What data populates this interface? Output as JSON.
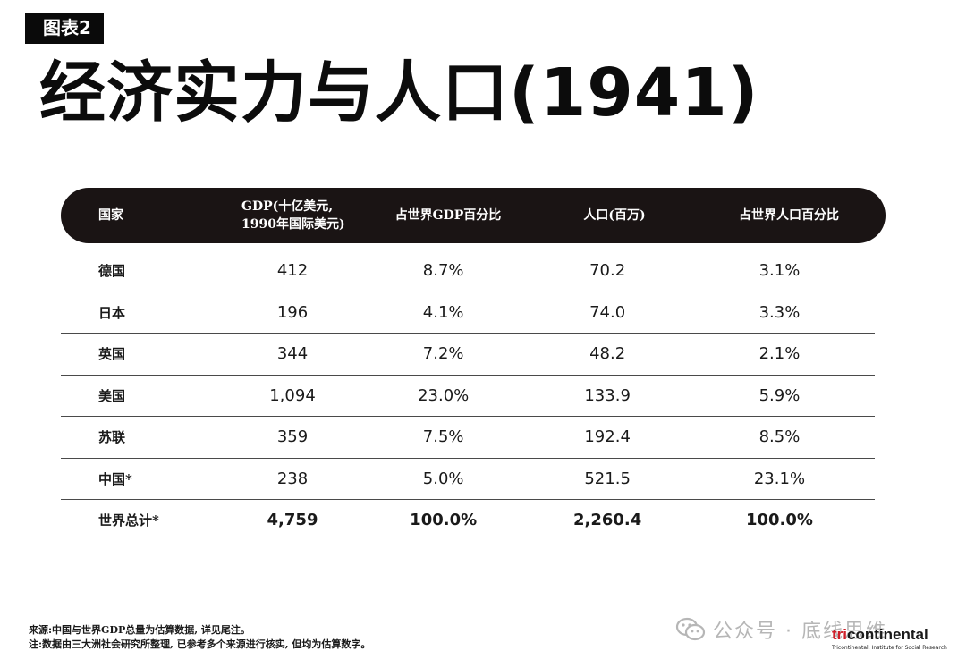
{
  "header": {
    "tag": "图表2",
    "title": "经济实力与人口(1941)"
  },
  "table": {
    "headers": [
      "国家",
      "GDP(十亿美元,\n1990年国际美元)",
      "占世界GDP百分比",
      "人口(百万)",
      "占世界人口百分比"
    ],
    "rows": [
      {
        "country": "德国",
        "gdp": "412",
        "gdp_pct": "8.7%",
        "pop": "70.2",
        "pop_pct": "3.1%"
      },
      {
        "country": "日本",
        "gdp": "196",
        "gdp_pct": "4.1%",
        "pop": "74.0",
        "pop_pct": "3.3%"
      },
      {
        "country": "英国",
        "gdp": "344",
        "gdp_pct": "7.2%",
        "pop": "48.2",
        "pop_pct": "2.1%"
      },
      {
        "country": "美国",
        "gdp": "1,094",
        "gdp_pct": "23.0%",
        "pop": "133.9",
        "pop_pct": "5.9%"
      },
      {
        "country": "苏联",
        "gdp": "359",
        "gdp_pct": "7.5%",
        "pop": "192.4",
        "pop_pct": "8.5%"
      },
      {
        "country": "中国*",
        "gdp": "238",
        "gdp_pct": "5.0%",
        "pop": "521.5",
        "pop_pct": "23.1%"
      },
      {
        "country": "世界总计*",
        "gdp": "4,759",
        "gdp_pct": "100.0%",
        "pop": "2,260.4",
        "pop_pct": "100.0%"
      }
    ]
  },
  "footnotes": {
    "source": "来源:中国与世界GDP总量为估算数据, 详见尾注。",
    "note": "注:数据由三大洲社会研究所整理, 已参考多个来源进行核实, 但均为估算数字。"
  },
  "watermark": {
    "text": "公众号 · 底线思维",
    "icon": "wechat-icon"
  },
  "logo": {
    "part1": "tri",
    "part2": "continental",
    "subtitle": "Tricontinental: Institute for Social Research"
  },
  "colors": {
    "header_bg": "#1a1414",
    "logo_red": "#d0202a",
    "watermark": "#b6b6b6"
  }
}
